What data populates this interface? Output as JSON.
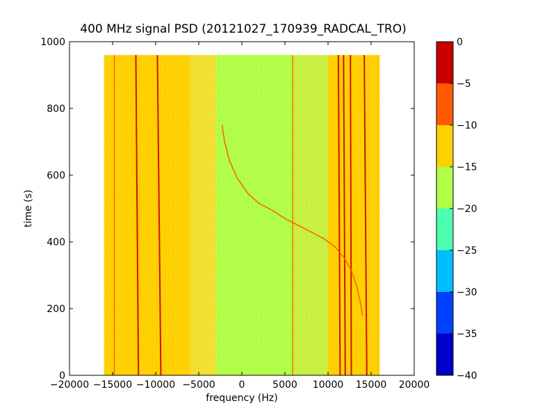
{
  "chart_data": {
    "type": "heatmap",
    "title": "400 MHz signal PSD (20121027_170939_RADCAL_TRO)",
    "xlabel": "frequency (Hz)",
    "ylabel": "time (s)",
    "xlim": [
      -20000,
      20000
    ],
    "ylim": [
      0,
      1000
    ],
    "x_ticks": [
      -20000,
      -15000,
      -10000,
      -5000,
      0,
      5000,
      10000,
      15000,
      20000
    ],
    "y_ticks": [
      0,
      200,
      400,
      600,
      800,
      1000
    ],
    "data_extent": {
      "x": [
        -16000,
        16000
      ],
      "y": [
        0,
        960
      ]
    },
    "colorbar": {
      "range": [
        -40,
        0
      ],
      "ticks": [
        0,
        -5,
        -10,
        -15,
        -20,
        -25,
        -30,
        -35,
        -40
      ],
      "levels": [
        {
          "from": -40,
          "to": -35,
          "color": "#0000c8"
        },
        {
          "from": -35,
          "to": -30,
          "color": "#0040ff"
        },
        {
          "from": -30,
          "to": -25,
          "color": "#00bfff"
        },
        {
          "from": -25,
          "to": -20,
          "color": "#4dffb0"
        },
        {
          "from": -20,
          "to": -15,
          "color": "#b0ff46"
        },
        {
          "from": -15,
          "to": -10,
          "color": "#ffd000"
        },
        {
          "from": -10,
          "to": -5,
          "color": "#ff5a00"
        },
        {
          "from": -5,
          "to": 0,
          "color": "#c80000"
        }
      ]
    },
    "background_bands": [
      {
        "x": [
          -16000,
          -6000
        ],
        "level": -12,
        "color": "#ffd000"
      },
      {
        "x": [
          -6000,
          -3000
        ],
        "level": -14,
        "color": "#f2e030"
      },
      {
        "x": [
          -3000,
          5800
        ],
        "level": -17,
        "color": "#b0ff46"
      },
      {
        "x": [
          5800,
          10000
        ],
        "level": -16,
        "color": "#c8f040"
      },
      {
        "x": [
          10000,
          16000
        ],
        "level": -12,
        "color": "#ffd000"
      }
    ],
    "vertical_lines": [
      {
        "x_top": -14800,
        "x_bottom": -14800,
        "level": -8
      },
      {
        "x_top": -12300,
        "x_bottom": -12000,
        "level": -3
      },
      {
        "x_top": -9800,
        "x_bottom": -9400,
        "level": -3
      },
      {
        "x_top": 5900,
        "x_bottom": 5900,
        "level": -8
      },
      {
        "x_top": 11200,
        "x_bottom": 11400,
        "level": -3
      },
      {
        "x_top": 11800,
        "x_bottom": 12000,
        "level": -3
      },
      {
        "x_top": 12600,
        "x_bottom": 12700,
        "level": -3
      },
      {
        "x_top": 14200,
        "x_bottom": 14500,
        "level": -3
      }
    ],
    "doppler_trace": {
      "level": -8,
      "points": [
        [
          -2300,
          750
        ],
        [
          -2000,
          700
        ],
        [
          -1400,
          640
        ],
        [
          -500,
          590
        ],
        [
          700,
          545
        ],
        [
          2000,
          515
        ],
        [
          3500,
          495
        ],
        [
          5000,
          470
        ],
        [
          6500,
          450
        ],
        [
          8000,
          430
        ],
        [
          9500,
          410
        ],
        [
          10800,
          385
        ],
        [
          11800,
          355
        ],
        [
          12700,
          315
        ],
        [
          13300,
          270
        ],
        [
          13700,
          225
        ],
        [
          14000,
          180
        ]
      ]
    }
  }
}
